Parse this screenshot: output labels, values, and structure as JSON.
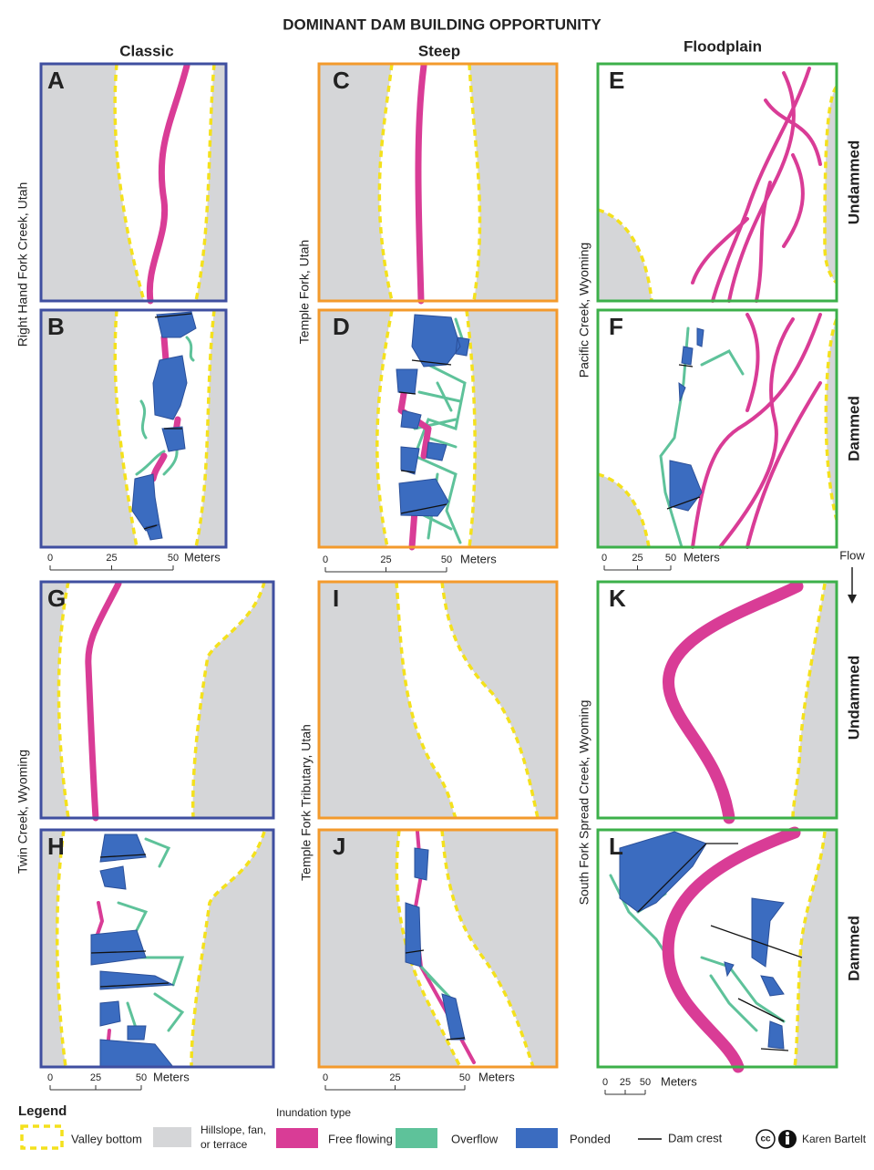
{
  "title": "DOMINANT DAM BUILDING OPPORTUNITY",
  "columns": [
    "Classic",
    "Steep",
    "Floodplain"
  ],
  "panels": [
    "A",
    "B",
    "C",
    "D",
    "E",
    "F",
    "G",
    "H",
    "I",
    "J",
    "K",
    "L"
  ],
  "sites": [
    "Right Hand Fork Creek, Utah",
    "Temple Fork, Utah",
    "Pacific Creek, Wyoming",
    "Twin Creek, Wyoming",
    "Temple Fork Tributary, Utah",
    "South Fork Spread Creek, Wyoming"
  ],
  "conditions": [
    "Undammed",
    "Dammed",
    "Undammed",
    "Dammed"
  ],
  "scale_bars": [
    {
      "ticks": [
        0,
        25,
        50
      ],
      "unit": "Meters"
    },
    {
      "ticks": [
        0,
        25,
        50
      ],
      "unit": "Meters"
    },
    {
      "ticks": [
        0,
        25,
        50
      ],
      "unit": "Meters"
    },
    {
      "ticks": [
        0,
        25,
        50
      ],
      "unit": "Meters"
    },
    {
      "ticks": [
        0,
        25,
        50
      ],
      "unit": "Meters"
    },
    {
      "ticks": [
        0,
        25,
        50
      ],
      "unit": "Meters"
    }
  ],
  "flow": "Flow",
  "legend": {
    "title": "Legend",
    "valley_bottom": "Valley bottom",
    "hillslope": [
      "Hillslope, fan,",
      "or terrace"
    ],
    "inundation_title": "Inundation type",
    "free_flowing": "Free flowing",
    "overflow": "Overflow",
    "ponded": "Ponded",
    "dam_crest": "Dam crest"
  },
  "credit": {
    "license": "cc",
    "author": "Karen Bartelt"
  }
}
